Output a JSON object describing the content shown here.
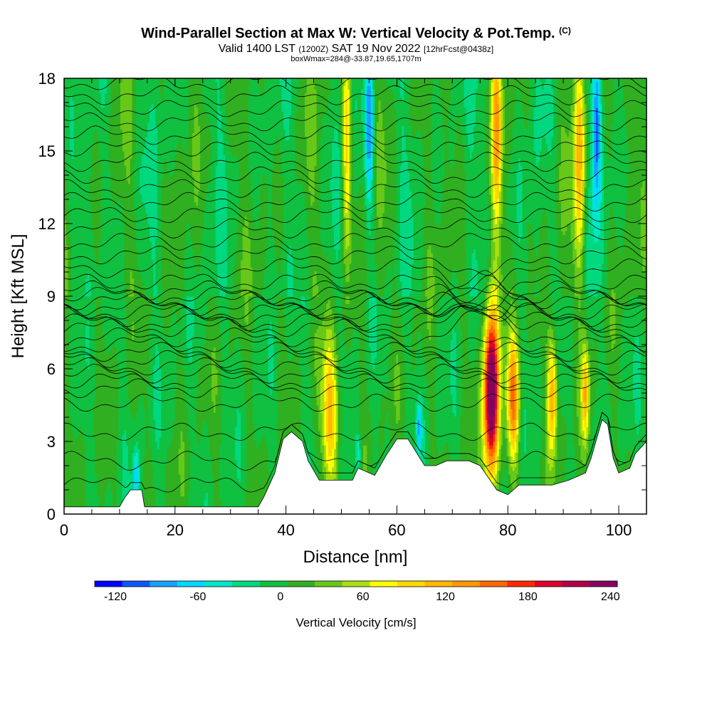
{
  "title": {
    "main": "Wind-Parallel Section at Max W: Vertical Velocity & Pot.Temp.",
    "mark": "(C)",
    "valid_prefix": "Valid 1400 LST",
    "valid_utc": "(1200Z)",
    "valid_date": "SAT 19 Nov 2022",
    "forecast": "[12hrFcst@0438z]",
    "boxinfo": "boxWmax=284@-33.87,19.65,1707m"
  },
  "chart_data": {
    "type": "heatmap",
    "xlabel": "Distance [nm]",
    "ylabel": "Height [Kft MSL]",
    "xlim": [
      0,
      105
    ],
    "ylim": [
      0,
      18
    ],
    "x_ticks": [
      "0",
      "20",
      "40",
      "60",
      "80",
      "100"
    ],
    "y_ticks": [
      "0",
      "3",
      "6",
      "9",
      "12",
      "15",
      "18"
    ],
    "fill_variable": "Vertical Velocity [cm/s]",
    "contour_variable": "Pot.Temp.",
    "colorbar": {
      "label": "Vertical Velocity [cm/s]",
      "tick_labels": [
        "-120",
        "-60",
        "0",
        "60",
        "120",
        "180",
        "240"
      ],
      "tick_values": [
        -120,
        -60,
        0,
        60,
        120,
        180,
        240
      ],
      "colors": [
        "#0000ff",
        "#0a58ff",
        "#1aa0ff",
        "#00d8ff",
        "#00e8c8",
        "#00d880",
        "#10c040",
        "#30b020",
        "#68c818",
        "#a8e010",
        "#ffff00",
        "#ffd800",
        "#ffb800",
        "#ff9800",
        "#ff6800",
        "#ff2800",
        "#e00030",
        "#b00048",
        "#880060"
      ],
      "start_value": -135,
      "step": 20
    },
    "terrain_kft": [
      [
        0,
        0.3
      ],
      [
        10,
        0.3
      ],
      [
        11,
        0.7
      ],
      [
        12,
        1
      ],
      [
        14,
        1
      ],
      [
        14.5,
        0.3
      ],
      [
        35,
        0.3
      ],
      [
        36,
        0.7
      ],
      [
        38,
        1.7
      ],
      [
        39.5,
        3.1
      ],
      [
        41,
        3.4
      ],
      [
        43,
        3
      ],
      [
        44,
        2.2
      ],
      [
        46,
        1.4
      ],
      [
        52,
        1.4
      ],
      [
        53,
        1.9
      ],
      [
        56,
        1.6
      ],
      [
        58,
        2.4
      ],
      [
        60,
        3.1
      ],
      [
        62,
        3.1
      ],
      [
        65,
        2
      ],
      [
        67,
        2
      ],
      [
        69,
        2.2
      ],
      [
        73,
        2.2
      ],
      [
        75,
        2
      ],
      [
        78,
        1
      ],
      [
        80,
        0.8
      ],
      [
        82,
        1.2
      ],
      [
        88,
        1.2
      ],
      [
        91,
        1.4
      ],
      [
        94,
        1.7
      ],
      [
        95,
        2.3
      ],
      [
        97,
        3.9
      ],
      [
        98,
        3.7
      ],
      [
        99,
        2.3
      ],
      [
        100,
        1.7
      ],
      [
        102,
        1.9
      ],
      [
        103,
        2.5
      ],
      [
        105,
        3.0
      ]
    ],
    "updrafts": [
      {
        "x": 48,
        "z": 4.2,
        "w": 1.6,
        "h": 3,
        "peak": 110
      },
      {
        "x": 51,
        "z": 15.5,
        "w": 0.8,
        "h": 4.5,
        "peak": 95
      },
      {
        "x": 77,
        "z": 5.0,
        "w": 1.3,
        "h": 3.5,
        "peak": 284
      },
      {
        "x": 81,
        "z": 4.8,
        "w": 1.1,
        "h": 2.5,
        "peak": 150
      },
      {
        "x": 88,
        "z": 5.0,
        "w": 0.9,
        "h": 2.5,
        "peak": 120
      },
      {
        "x": 94,
        "z": 5.0,
        "w": 0.7,
        "h": 2,
        "peak": 110
      },
      {
        "x": 78,
        "z": 16,
        "w": 0.9,
        "h": 4,
        "peak": 110
      },
      {
        "x": 93,
        "z": 15,
        "w": 1.0,
        "h": 4.5,
        "peak": 110
      }
    ],
    "downdrafts": [
      {
        "x": 13,
        "z": 1.5,
        "w": 0.6,
        "h": 1.2,
        "peak": -70
      },
      {
        "x": 55,
        "z": 16,
        "w": 0.8,
        "h": 3.5,
        "peak": -90
      },
      {
        "x": 96,
        "z": 16,
        "w": 0.8,
        "h": 3.5,
        "peak": -110
      },
      {
        "x": 64,
        "z": 3.6,
        "w": 0.5,
        "h": 1,
        "peak": -70
      },
      {
        "x": 53,
        "z": 2.5,
        "w": 0.5,
        "h": 0.8,
        "peak": -60
      }
    ],
    "isentrope_count": 36
  }
}
